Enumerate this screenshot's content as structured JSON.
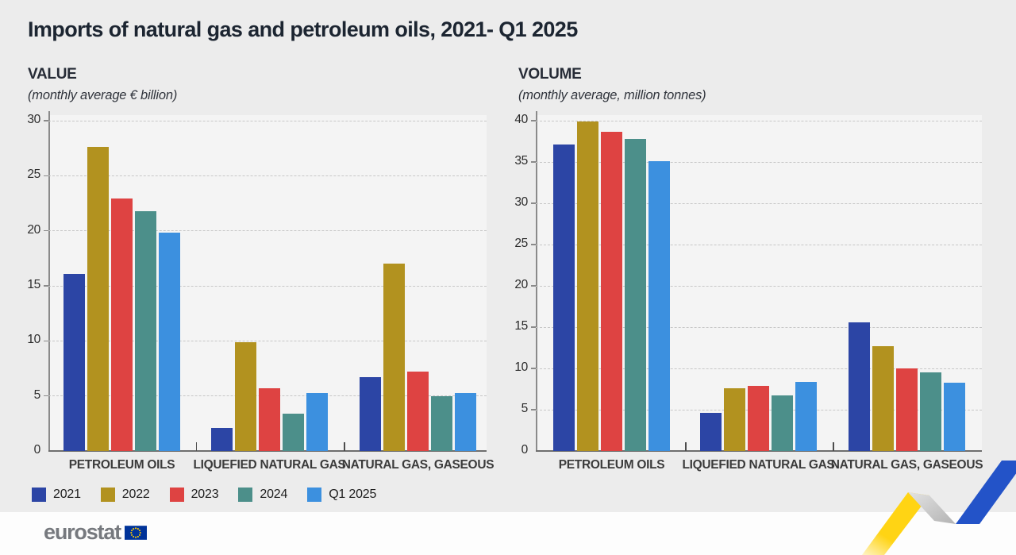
{
  "page": {
    "title": "Imports of natural gas and petroleum oils, 2021- Q1 2025"
  },
  "chart_data": [
    {
      "type": "bar",
      "title": "VALUE",
      "subtitle": "(monthly average € billion)",
      "categories": [
        "PETROLEUM OILS",
        "LIQUEFIED NATURAL GAS",
        "NATURAL GAS, GASEOUS"
      ],
      "series": [
        {
          "name": "2021",
          "color": "#2C45A5",
          "values": [
            16.1,
            2.1,
            6.7
          ]
        },
        {
          "name": "2022",
          "color": "#B2921F",
          "values": [
            27.6,
            9.9,
            17.0
          ]
        },
        {
          "name": "2023",
          "color": "#DE4342",
          "values": [
            22.9,
            5.7,
            7.2
          ]
        },
        {
          "name": "2024",
          "color": "#4C8F8A",
          "values": [
            21.8,
            3.4,
            5.0
          ]
        },
        {
          "name": "Q1 2025",
          "color": "#3C90DF",
          "values": [
            19.8,
            5.3,
            5.3
          ]
        }
      ],
      "ylim": [
        0,
        30
      ],
      "yticks": [
        0,
        5,
        10,
        15,
        20,
        25,
        30
      ],
      "grid": true,
      "legend_position": "bottom-left"
    },
    {
      "type": "bar",
      "title": "VOLUME",
      "subtitle": "(monthly average, million tonnes)",
      "categories": [
        "PETROLEUM OILS",
        "LIQUEFIED NATURAL GAS",
        "NATURAL GAS, GASEOUS"
      ],
      "series": [
        {
          "name": "2021",
          "color": "#2C45A5",
          "values": [
            37.1,
            4.6,
            15.6
          ]
        },
        {
          "name": "2022",
          "color": "#B2921F",
          "values": [
            39.9,
            7.6,
            12.7
          ]
        },
        {
          "name": "2023",
          "color": "#DE4342",
          "values": [
            38.7,
            7.9,
            10.0
          ]
        },
        {
          "name": "2024",
          "color": "#4C8F8A",
          "values": [
            37.8,
            6.7,
            9.5
          ]
        },
        {
          "name": "Q1 2025",
          "color": "#3C90DF",
          "values": [
            35.1,
            8.4,
            8.3
          ]
        }
      ],
      "ylim": [
        0,
        40
      ],
      "yticks": [
        0,
        5,
        10,
        15,
        20,
        25,
        30,
        35,
        40
      ],
      "grid": true,
      "legend_position": "bottom-left"
    }
  ],
  "legend": {
    "items": [
      {
        "label": "2021",
        "color": "#2C45A5"
      },
      {
        "label": "2022",
        "color": "#B2921F"
      },
      {
        "label": "2023",
        "color": "#DE4342"
      },
      {
        "label": "2024",
        "color": "#4C8F8A"
      },
      {
        "label": "Q1 2025",
        "color": "#3C90DF"
      }
    ]
  },
  "footer": {
    "brand": "eurostat",
    "flag_blue": "#003399",
    "flag_stars": "#FFCC00"
  },
  "decor": {
    "ribbon_yellow": "#FFD414",
    "ribbon_gray_light": "#E3E3E3",
    "ribbon_gray_dark": "#B3B3B3",
    "ribbon_blue": "#2353C8"
  }
}
